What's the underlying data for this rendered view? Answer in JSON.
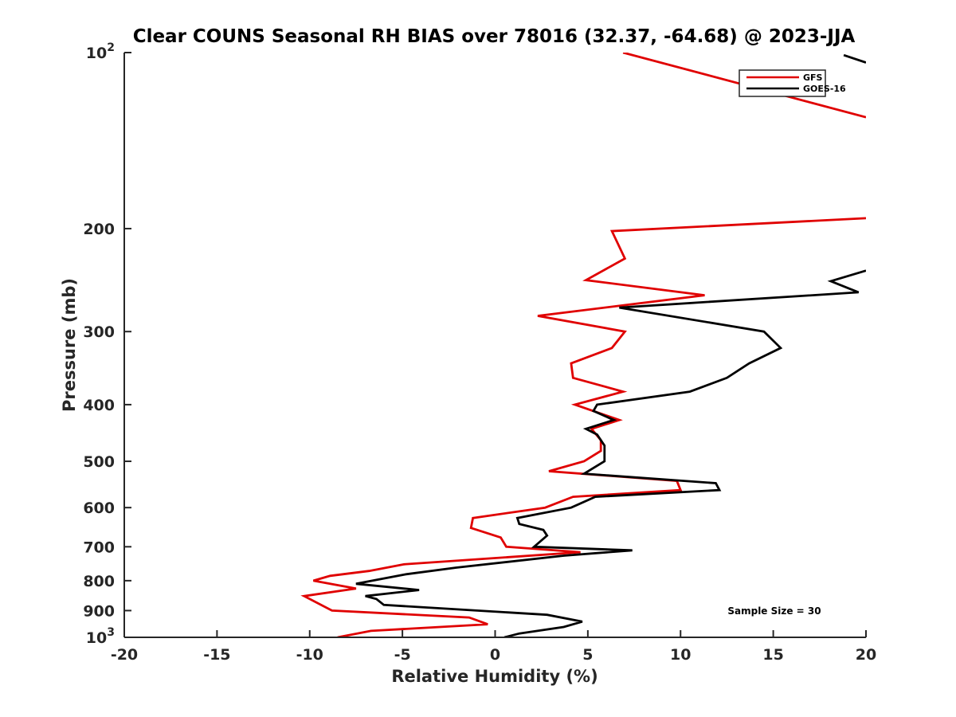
{
  "chart_data": {
    "type": "line",
    "title": "Clear COUNS Seasonal RH BIAS over 78016 (32.37, -64.68) @ 2023-JJA",
    "xlabel": "Relative Humidity (%)",
    "ylabel": "Pressure (mb)",
    "xlim": [
      -20,
      20
    ],
    "ylim": [
      100,
      1000
    ],
    "yscale": "log",
    "yreversed": true,
    "x_ticks": [
      "-20",
      "-15",
      "-10",
      "-5",
      "0",
      "5",
      "10",
      "15",
      "20"
    ],
    "y_ticks": [
      {
        "value": 100,
        "label": "10",
        "sup": "2"
      },
      {
        "value": 200,
        "label": "200",
        "sup": ""
      },
      {
        "value": 300,
        "label": "300",
        "sup": ""
      },
      {
        "value": 400,
        "label": "400",
        "sup": ""
      },
      {
        "value": 500,
        "label": "500",
        "sup": ""
      },
      {
        "value": 600,
        "label": "600",
        "sup": ""
      },
      {
        "value": 700,
        "label": "700",
        "sup": ""
      },
      {
        "value": 800,
        "label": "800",
        "sup": ""
      },
      {
        "value": 900,
        "label": "900",
        "sup": ""
      },
      {
        "value": 1000,
        "label": "10",
        "sup": "3"
      }
    ],
    "legend_position": "top-right",
    "annotation": "Sample Size = 30",
    "series": [
      {
        "name": "GFS",
        "color": "#e00000",
        "points": [
          [
            -8.5,
            1000
          ],
          [
            -6.7,
            975
          ],
          [
            -0.4,
            950
          ],
          [
            -1.4,
            925
          ],
          [
            -8.8,
            900
          ],
          [
            -10.3,
            850
          ],
          [
            -7.5,
            825
          ],
          [
            -9.8,
            800
          ],
          [
            -8.9,
            785
          ],
          [
            -6.8,
            770
          ],
          [
            -4.9,
            750
          ],
          [
            4.6,
            715
          ],
          [
            0.6,
            700
          ],
          [
            0.3,
            675
          ],
          [
            -1.3,
            650
          ],
          [
            -1.2,
            625
          ],
          [
            2.7,
            600
          ],
          [
            4.2,
            575
          ],
          [
            10.0,
            560
          ],
          [
            9.8,
            540
          ],
          [
            2.9,
            520
          ],
          [
            4.8,
            500
          ],
          [
            5.7,
            480
          ],
          [
            5.7,
            460
          ],
          [
            5.2,
            440
          ],
          [
            6.7,
            425
          ],
          [
            4.3,
            400
          ],
          [
            6.9,
            380
          ],
          [
            4.2,
            360
          ],
          [
            4.1,
            340
          ],
          [
            6.3,
            320
          ],
          [
            7.0,
            300
          ],
          [
            2.3,
            282
          ],
          [
            11.3,
            260
          ],
          [
            4.9,
            245
          ],
          [
            7.0,
            225
          ],
          [
            6.3,
            202
          ],
          [
            20.0,
            192
          ]
        ],
        "points_top": [
          [
            6.9,
            100
          ],
          [
            20.0,
            129
          ]
        ]
      },
      {
        "name": "GOES-16",
        "color": "#000000",
        "points": [
          [
            0.5,
            1000
          ],
          [
            1.3,
            985
          ],
          [
            3.7,
            960
          ],
          [
            4.7,
            940
          ],
          [
            2.8,
            915
          ],
          [
            -6.0,
            880
          ],
          [
            -6.4,
            860
          ],
          [
            -7.0,
            850
          ],
          [
            -4.1,
            830
          ],
          [
            -7.5,
            810
          ],
          [
            -4.8,
            780
          ],
          [
            -2.1,
            760
          ],
          [
            3.7,
            725
          ],
          [
            7.4,
            710
          ],
          [
            2.1,
            700
          ],
          [
            2.8,
            670
          ],
          [
            2.6,
            655
          ],
          [
            1.3,
            640
          ],
          [
            1.2,
            625
          ],
          [
            4.1,
            600
          ],
          [
            5.4,
            575
          ],
          [
            12.1,
            560
          ],
          [
            11.9,
            545
          ],
          [
            4.8,
            525
          ],
          [
            5.9,
            500
          ],
          [
            5.9,
            470
          ],
          [
            5.5,
            450
          ],
          [
            4.9,
            440
          ],
          [
            6.4,
            425
          ],
          [
            5.3,
            410
          ],
          [
            5.5,
            400
          ],
          [
            10.5,
            380
          ],
          [
            12.5,
            360
          ],
          [
            13.7,
            340
          ],
          [
            15.4,
            320
          ],
          [
            14.5,
            300
          ],
          [
            6.7,
            273
          ],
          [
            19.6,
            257
          ],
          [
            18.1,
            246
          ],
          [
            20.0,
            236
          ]
        ],
        "points_top": [
          [
            18.8,
            101
          ],
          [
            20.0,
            104
          ]
        ]
      }
    ]
  }
}
